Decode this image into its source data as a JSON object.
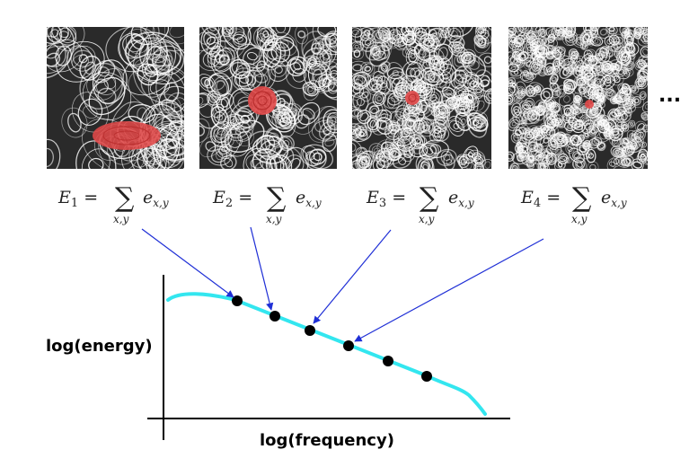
{
  "panels": [
    {
      "subscript": "1",
      "sum_index": "x,y",
      "term": "e",
      "term_sub": "x,y"
    },
    {
      "subscript": "2",
      "sum_index": "x,y",
      "term": "e",
      "term_sub": "x,y"
    },
    {
      "subscript": "3",
      "sum_index": "x,y",
      "term": "e",
      "term_sub": "x,y"
    },
    {
      "subscript": "4",
      "sum_index": "x,y",
      "term": "e",
      "term_sub": "x,y"
    }
  ],
  "ellipsis": "...",
  "graph": {
    "ylabel": "log(energy)",
    "xlabel": "log(frequency)"
  },
  "colors": {
    "curve": "#33e6ef",
    "arrow": "#1f2fd6",
    "dot": "#000000",
    "eddy": "#e04848",
    "texture_dark": "#2a2a2a",
    "texture_light": "#ffffff"
  }
}
